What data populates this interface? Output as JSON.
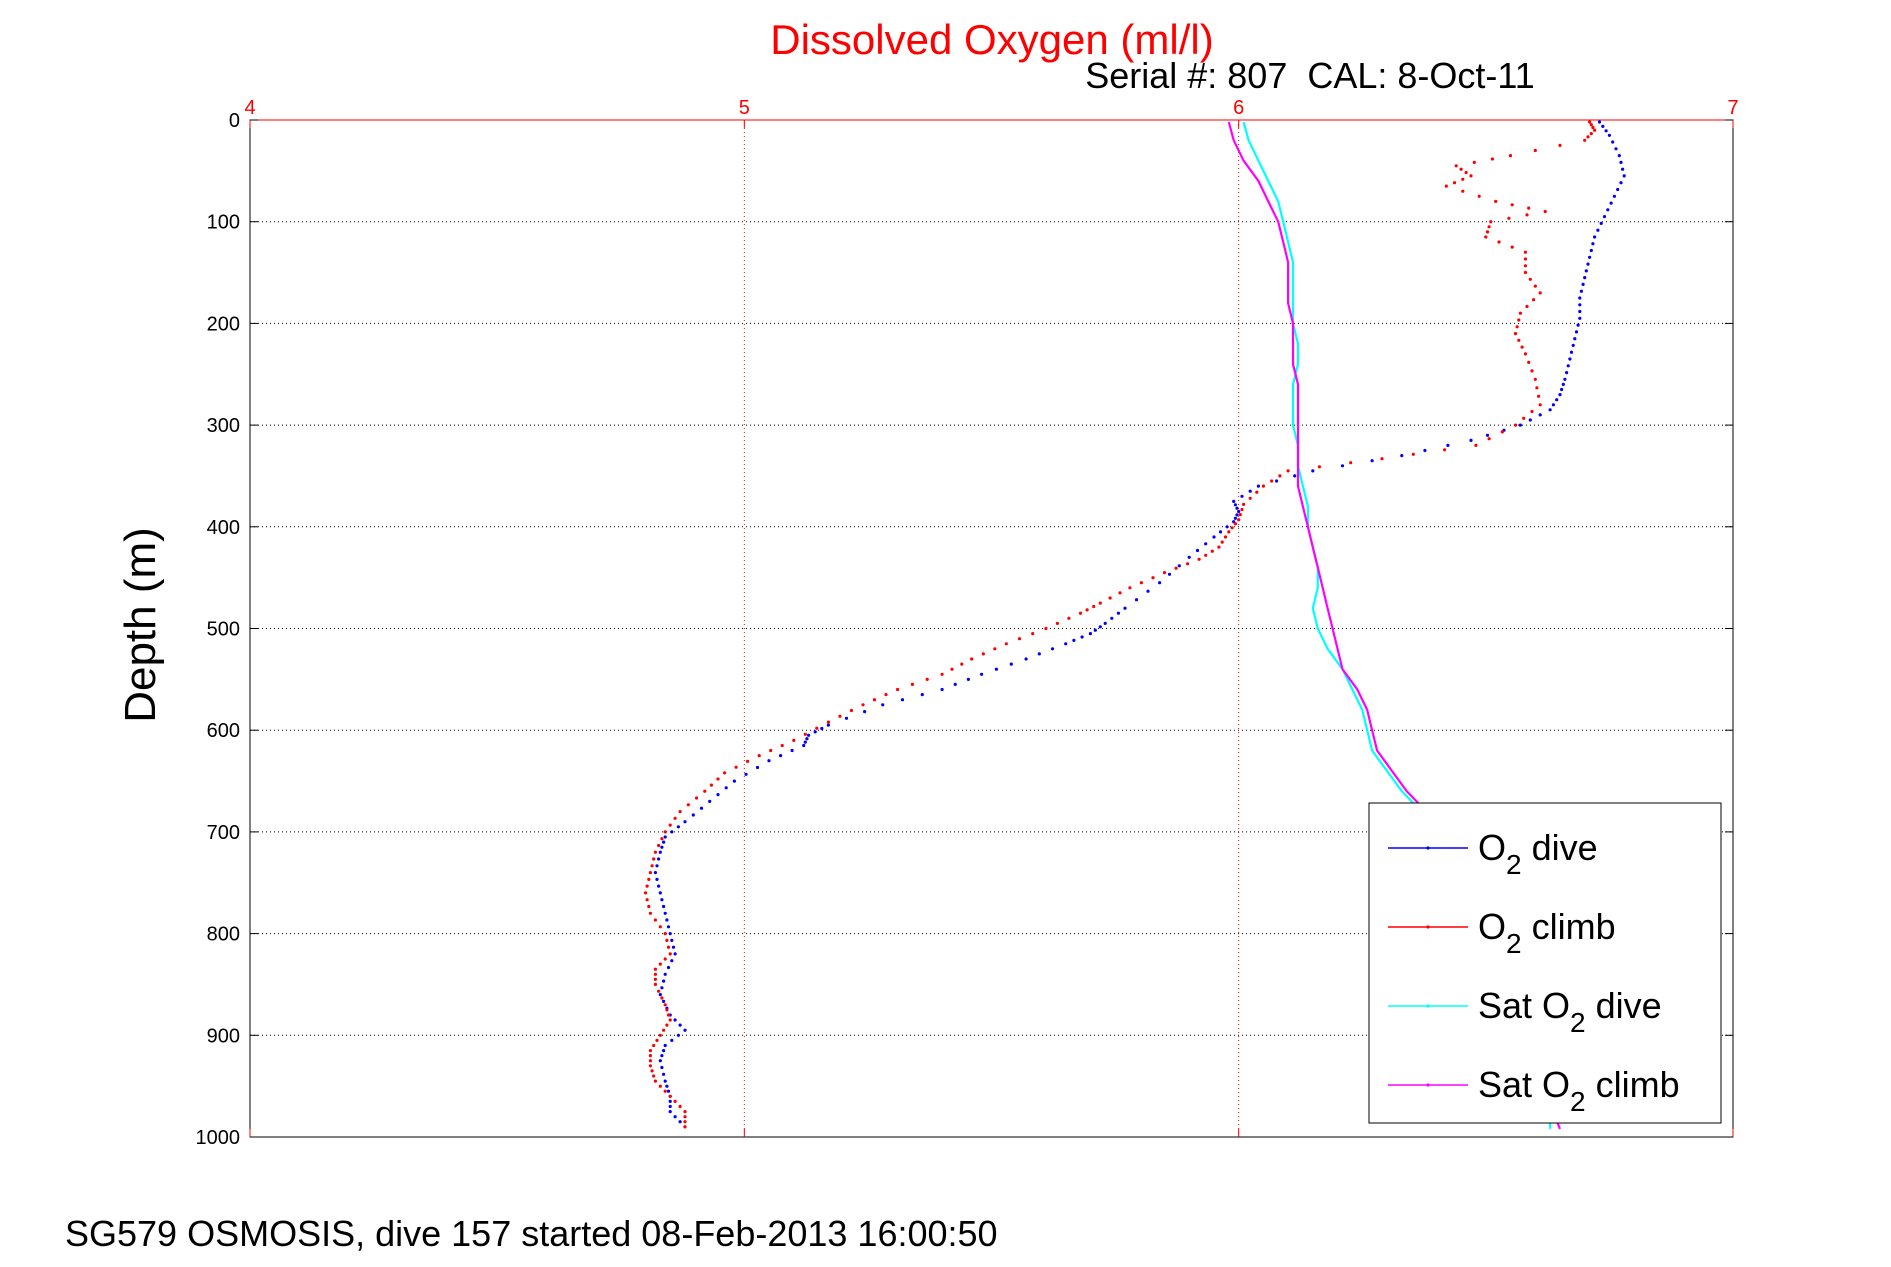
{
  "chart_data": {
    "type": "scatter",
    "title": "Dissolved Oxygen (ml/l)",
    "subtitle": "Serial #: 807  CAL: 8-Oct-11",
    "footer": "SG579 OSMOSIS, dive 157 started 08-Feb-2013 16:00:50",
    "xlabel": "",
    "ylabel": "Depth (m)",
    "xlim": [
      4,
      7
    ],
    "ylim": [
      0,
      1000
    ],
    "y_reversed": true,
    "x_axis_position": "top",
    "x_ticks": [
      "4",
      "5",
      "6",
      "7"
    ],
    "y_ticks": [
      "0",
      "100",
      "200",
      "300",
      "400",
      "500",
      "600",
      "700",
      "800",
      "900",
      "1000"
    ],
    "grid": true,
    "legend_placement": "bottom-right",
    "colors": {
      "o2_dive": "#0000ff",
      "o2_climb": "#ff0000",
      "sat_o2_dive": "#00ffff",
      "sat_o2_climb": "#ff00ff",
      "title": "#ff0000",
      "x_ticks": "#ff0000"
    },
    "series": [
      {
        "name": "O2 dive",
        "legend_base": "O",
        "legend_sub": "2",
        "legend_suffix": " dive",
        "style": "points",
        "color": "#0000ff",
        "points": [
          [
            6.73,
            2
          ],
          [
            6.75,
            15
          ],
          [
            6.77,
            35
          ],
          [
            6.78,
            55
          ],
          [
            6.76,
            75
          ],
          [
            6.74,
            95
          ],
          [
            6.72,
            115
          ],
          [
            6.71,
            135
          ],
          [
            6.7,
            155
          ],
          [
            6.69,
            175
          ],
          [
            6.69,
            195
          ],
          [
            6.68,
            215
          ],
          [
            6.67,
            235
          ],
          [
            6.66,
            255
          ],
          [
            6.65,
            270
          ],
          [
            6.63,
            285
          ],
          [
            6.57,
            300
          ],
          [
            6.47,
            315
          ],
          [
            6.33,
            330
          ],
          [
            6.15,
            345
          ],
          [
            6.04,
            360
          ],
          [
            5.99,
            375
          ],
          [
            6.0,
            385
          ],
          [
            5.99,
            395
          ],
          [
            5.95,
            410
          ],
          [
            5.9,
            430
          ],
          [
            5.84,
            455
          ],
          [
            5.77,
            480
          ],
          [
            5.73,
            495
          ],
          [
            5.7,
            505
          ],
          [
            5.65,
            515
          ],
          [
            5.57,
            530
          ],
          [
            5.48,
            545
          ],
          [
            5.4,
            560
          ],
          [
            5.28,
            575
          ],
          [
            5.17,
            595
          ],
          [
            5.13,
            605
          ],
          [
            5.12,
            615
          ],
          [
            5.05,
            630
          ],
          [
            4.98,
            650
          ],
          [
            4.93,
            670
          ],
          [
            4.88,
            690
          ],
          [
            4.84,
            705
          ],
          [
            4.83,
            720
          ],
          [
            4.82,
            740
          ],
          [
            4.83,
            760
          ],
          [
            4.84,
            780
          ],
          [
            4.85,
            800
          ],
          [
            4.86,
            820
          ],
          [
            4.84,
            840
          ],
          [
            4.83,
            860
          ],
          [
            4.85,
            880
          ],
          [
            4.88,
            895
          ],
          [
            4.84,
            910
          ],
          [
            4.83,
            925
          ],
          [
            4.84,
            945
          ],
          [
            4.85,
            960
          ],
          [
            4.85,
            975
          ],
          [
            4.88,
            990
          ]
        ]
      },
      {
        "name": "O2 climb",
        "legend_base": "O",
        "legend_sub": "2",
        "legend_suffix": " climb",
        "style": "points",
        "color": "#ff0000",
        "points": [
          [
            6.71,
            2
          ],
          [
            6.72,
            10
          ],
          [
            6.7,
            20
          ],
          [
            6.55,
            35
          ],
          [
            6.44,
            45
          ],
          [
            6.47,
            55
          ],
          [
            6.42,
            65
          ],
          [
            6.52,
            80
          ],
          [
            6.62,
            90
          ],
          [
            6.51,
            100
          ],
          [
            6.5,
            115
          ],
          [
            6.58,
            130
          ],
          [
            6.58,
            150
          ],
          [
            6.61,
            170
          ],
          [
            6.57,
            190
          ],
          [
            6.56,
            210
          ],
          [
            6.58,
            230
          ],
          [
            6.6,
            255
          ],
          [
            6.61,
            280
          ],
          [
            6.56,
            300
          ],
          [
            6.48,
            320
          ],
          [
            6.29,
            333
          ],
          [
            6.1,
            345
          ],
          [
            6.05,
            360
          ],
          [
            6.01,
            378
          ],
          [
            6.0,
            393
          ],
          [
            5.98,
            405
          ],
          [
            5.96,
            420
          ],
          [
            5.92,
            432
          ],
          [
            5.85,
            445
          ],
          [
            5.78,
            460
          ],
          [
            5.72,
            475
          ],
          [
            5.68,
            485
          ],
          [
            5.61,
            500
          ],
          [
            5.53,
            515
          ],
          [
            5.46,
            530
          ],
          [
            5.4,
            545
          ],
          [
            5.31,
            560
          ],
          [
            5.24,
            575
          ],
          [
            5.17,
            592
          ],
          [
            5.1,
            610
          ],
          [
            5.03,
            625
          ],
          [
            4.96,
            642
          ],
          [
            4.92,
            660
          ],
          [
            4.87,
            680
          ],
          [
            4.84,
            700
          ],
          [
            4.82,
            720
          ],
          [
            4.81,
            740
          ],
          [
            4.8,
            760
          ],
          [
            4.81,
            780
          ],
          [
            4.84,
            800
          ],
          [
            4.85,
            820
          ],
          [
            4.82,
            835
          ],
          [
            4.82,
            850
          ],
          [
            4.84,
            870
          ],
          [
            4.85,
            885
          ],
          [
            4.83,
            900
          ],
          [
            4.81,
            915
          ],
          [
            4.81,
            930
          ],
          [
            4.82,
            945
          ],
          [
            4.85,
            960
          ],
          [
            4.88,
            975
          ],
          [
            4.88,
            990
          ]
        ]
      },
      {
        "name": "Sat O2 dive",
        "legend_base": "Sat O",
        "legend_sub": "2",
        "legend_suffix": " dive",
        "style": "line",
        "color": "#00ffff",
        "points": [
          [
            6.01,
            2
          ],
          [
            6.02,
            20
          ],
          [
            6.04,
            40
          ],
          [
            6.06,
            60
          ],
          [
            6.08,
            80
          ],
          [
            6.09,
            100
          ],
          [
            6.1,
            120
          ],
          [
            6.11,
            140
          ],
          [
            6.11,
            160
          ],
          [
            6.11,
            180
          ],
          [
            6.11,
            200
          ],
          [
            6.12,
            220
          ],
          [
            6.12,
            240
          ],
          [
            6.11,
            260
          ],
          [
            6.11,
            280
          ],
          [
            6.11,
            300
          ],
          [
            6.12,
            320
          ],
          [
            6.12,
            340
          ],
          [
            6.13,
            360
          ],
          [
            6.14,
            380
          ],
          [
            6.14,
            400
          ],
          [
            6.15,
            420
          ],
          [
            6.16,
            440
          ],
          [
            6.16,
            460
          ],
          [
            6.15,
            480
          ],
          [
            6.16,
            500
          ],
          [
            6.18,
            520
          ],
          [
            6.21,
            540
          ],
          [
            6.23,
            560
          ],
          [
            6.25,
            580
          ],
          [
            6.26,
            600
          ],
          [
            6.27,
            620
          ],
          [
            6.3,
            640
          ],
          [
            6.33,
            660
          ],
          [
            6.37,
            680
          ],
          [
            6.42,
            700
          ],
          [
            6.46,
            720
          ],
          [
            6.5,
            740
          ],
          [
            6.53,
            760
          ],
          [
            6.55,
            780
          ],
          [
            6.57,
            800
          ],
          [
            6.58,
            820
          ],
          [
            6.59,
            840
          ],
          [
            6.6,
            860
          ],
          [
            6.61,
            880
          ],
          [
            6.61,
            900
          ],
          [
            6.62,
            920
          ],
          [
            6.62,
            940
          ],
          [
            6.63,
            960
          ],
          [
            6.63,
            980
          ],
          [
            6.63,
            992
          ]
        ]
      },
      {
        "name": "Sat O2 climb",
        "legend_base": "Sat O",
        "legend_sub": "2",
        "legend_suffix": " climb",
        "style": "line",
        "color": "#ff00ff",
        "points": [
          [
            5.98,
            2
          ],
          [
            5.99,
            20
          ],
          [
            6.01,
            40
          ],
          [
            6.04,
            60
          ],
          [
            6.06,
            80
          ],
          [
            6.08,
            100
          ],
          [
            6.09,
            120
          ],
          [
            6.1,
            140
          ],
          [
            6.1,
            160
          ],
          [
            6.1,
            180
          ],
          [
            6.11,
            200
          ],
          [
            6.11,
            220
          ],
          [
            6.11,
            240
          ],
          [
            6.12,
            260
          ],
          [
            6.12,
            280
          ],
          [
            6.12,
            300
          ],
          [
            6.12,
            320
          ],
          [
            6.12,
            340
          ],
          [
            6.12,
            360
          ],
          [
            6.13,
            380
          ],
          [
            6.14,
            400
          ],
          [
            6.15,
            420
          ],
          [
            6.16,
            440
          ],
          [
            6.17,
            460
          ],
          [
            6.18,
            480
          ],
          [
            6.19,
            500
          ],
          [
            6.2,
            520
          ],
          [
            6.21,
            540
          ],
          [
            6.24,
            560
          ],
          [
            6.26,
            580
          ],
          [
            6.27,
            600
          ],
          [
            6.28,
            620
          ],
          [
            6.31,
            640
          ],
          [
            6.34,
            660
          ],
          [
            6.38,
            680
          ],
          [
            6.42,
            700
          ],
          [
            6.46,
            720
          ],
          [
            6.5,
            740
          ],
          [
            6.53,
            760
          ],
          [
            6.55,
            780
          ],
          [
            6.57,
            800
          ],
          [
            6.59,
            820
          ],
          [
            6.6,
            840
          ],
          [
            6.61,
            860
          ],
          [
            6.62,
            880
          ],
          [
            6.62,
            900
          ],
          [
            6.63,
            920
          ],
          [
            6.63,
            940
          ],
          [
            6.64,
            960
          ],
          [
            6.64,
            980
          ],
          [
            6.65,
            992
          ]
        ]
      }
    ]
  }
}
